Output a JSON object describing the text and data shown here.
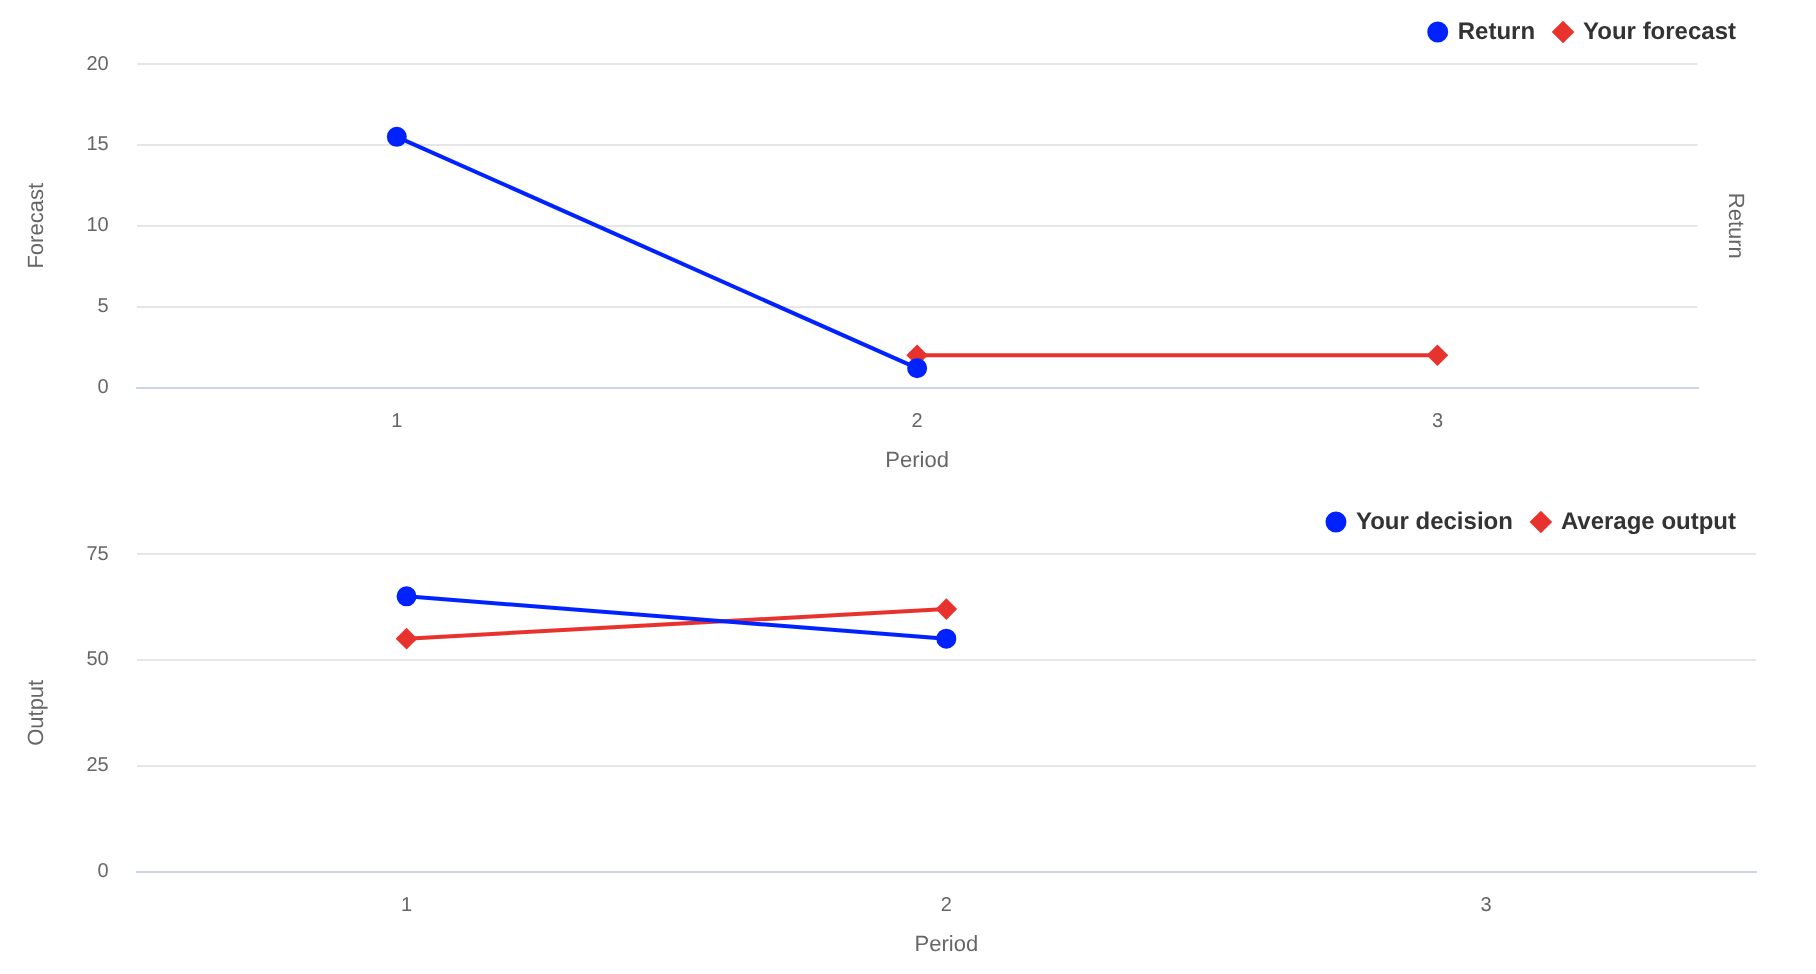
{
  "chart_data": [
    {
      "type": "line",
      "categories": [
        "1",
        "2",
        "3"
      ],
      "xlabel": "Period",
      "ylabel": "Forecast",
      "y2label": "Return",
      "ylim": [
        0,
        20
      ],
      "yticks": [
        0,
        5,
        10,
        15,
        20
      ],
      "grid": "y",
      "legend": "top right",
      "series": [
        {
          "name": "Return",
          "color": "#0022ff",
          "marker": "circle",
          "values": [
            15.5,
            1.2,
            null
          ]
        },
        {
          "name": "Your forecast",
          "color": "#e8322d",
          "marker": "diamond",
          "values": [
            null,
            2,
            2
          ]
        }
      ]
    },
    {
      "type": "line",
      "categories": [
        "1",
        "2",
        "3"
      ],
      "xlabel": "Period",
      "ylabel": "Output",
      "ylim": [
        0,
        75
      ],
      "yticks": [
        0,
        25,
        50,
        75
      ],
      "grid": "y",
      "legend": "top right",
      "series": [
        {
          "name": "Your decision",
          "color": "#0022ff",
          "marker": "circle",
          "values": [
            65,
            55,
            null
          ]
        },
        {
          "name": "Average output",
          "color": "#e8322d",
          "marker": "diamond",
          "values": [
            55,
            62,
            null
          ]
        }
      ]
    }
  ]
}
